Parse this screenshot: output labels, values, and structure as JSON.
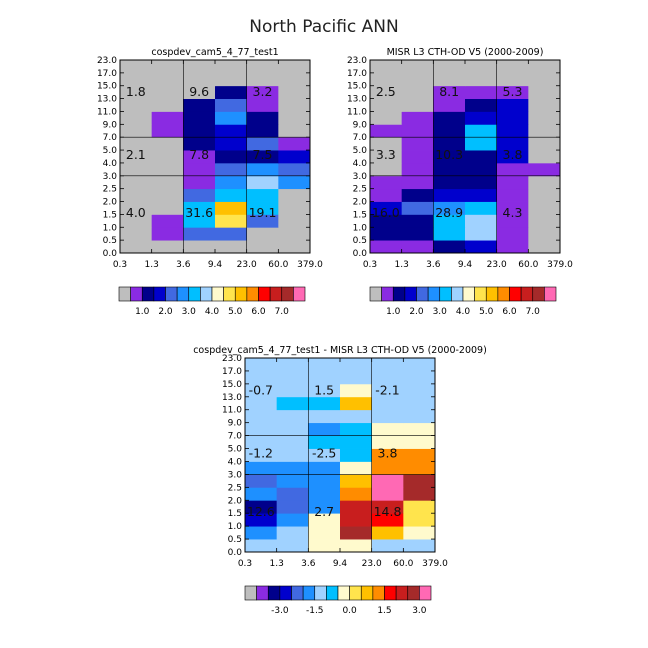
{
  "title": "North Pacific ANN",
  "chart_data": [
    {
      "type": "heatmap",
      "title": "cospdev_cam5_4_77_test1",
      "xticks": [
        "0.3",
        "1.3",
        "3.6",
        "9.4",
        "23.0",
        "60.0",
        "379.0"
      ],
      "yticks": [
        "0.0",
        "0.5",
        "1.0",
        "1.5",
        "2.0",
        "2.5",
        "3.0",
        "4.0",
        "5.0",
        "7.0",
        "9.0",
        "11.0",
        "13.0",
        "15.0",
        "17.0",
        "23.0"
      ],
      "palette": "abs",
      "cells": [
        [
          0,
          0,
          0,
          0,
          0,
          0
        ],
        [
          0,
          1,
          4,
          4,
          0,
          0
        ],
        [
          0,
          1,
          6,
          9,
          4,
          0
        ],
        [
          0,
          0,
          6,
          10,
          6,
          0
        ],
        [
          0,
          0,
          4,
          6,
          6,
          0
        ],
        [
          0,
          0,
          1,
          5,
          7,
          5
        ],
        [
          0,
          0,
          1,
          4,
          5,
          4
        ],
        [
          0,
          0,
          1,
          2,
          2,
          3
        ],
        [
          0,
          0,
          2,
          3,
          4,
          1
        ],
        [
          0,
          1,
          2,
          3,
          2,
          0
        ],
        [
          0,
          1,
          2,
          5,
          2,
          0
        ],
        [
          0,
          0,
          2,
          4,
          1,
          0
        ],
        [
          0,
          0,
          0,
          2,
          1,
          0
        ],
        [
          0,
          0,
          0,
          0,
          0,
          0
        ],
        [
          0,
          0,
          0,
          0,
          0,
          0
        ]
      ],
      "annotations": [
        {
          "text": "1.8",
          "col": 0.5,
          "row": 12.5
        },
        {
          "text": "9.6",
          "col": 2.5,
          "row": 12.5
        },
        {
          "text": "3.2",
          "col": 4.5,
          "row": 12.5
        },
        {
          "text": "2.1",
          "col": 0.5,
          "row": 7.6
        },
        {
          "text": "7.8",
          "col": 2.5,
          "row": 7.6
        },
        {
          "text": "7.5",
          "col": 4.5,
          "row": 7.6
        },
        {
          "text": "4.0",
          "col": 0.5,
          "row": 3.1
        },
        {
          "text": "31.6",
          "col": 2.5,
          "row": 3.1
        },
        {
          "text": "19.1",
          "col": 4.5,
          "row": 3.1
        }
      ]
    },
    {
      "type": "heatmap",
      "title": "MISR L3 CTH-OD V5 (2000-2009)",
      "xticks": [
        "0.3",
        "1.3",
        "3.6",
        "9.4",
        "23.0",
        "60.0",
        "379.0"
      ],
      "yticks": [
        "0.0",
        "0.5",
        "1.0",
        "1.5",
        "2.0",
        "2.5",
        "3.0",
        "4.0",
        "5.0",
        "7.0",
        "9.0",
        "11.0",
        "13.0",
        "15.0",
        "17.0",
        "23.0"
      ],
      "palette": "abs",
      "cells": [
        [
          1,
          1,
          2,
          3,
          1,
          0
        ],
        [
          2,
          2,
          6,
          7,
          1,
          0
        ],
        [
          2,
          2,
          6,
          7,
          1,
          0
        ],
        [
          3,
          4,
          5,
          6,
          1,
          0
        ],
        [
          1,
          2,
          3,
          3,
          1,
          0
        ],
        [
          1,
          1,
          2,
          2,
          1,
          0
        ],
        [
          0,
          1,
          2,
          2,
          1,
          1
        ],
        [
          0,
          1,
          2,
          2,
          3,
          0
        ],
        [
          0,
          1,
          2,
          6,
          3,
          0
        ],
        [
          1,
          1,
          2,
          6,
          3,
          0
        ],
        [
          0,
          1,
          2,
          3,
          3,
          0
        ],
        [
          0,
          0,
          1,
          2,
          3,
          0
        ],
        [
          0,
          0,
          1,
          1,
          1,
          0
        ],
        [
          0,
          0,
          0,
          0,
          0,
          0
        ],
        [
          0,
          0,
          0,
          0,
          0,
          0
        ]
      ],
      "annotations": [
        {
          "text": "2.5",
          "col": 0.5,
          "row": 12.5
        },
        {
          "text": "8.1",
          "col": 2.5,
          "row": 12.5
        },
        {
          "text": "5.3",
          "col": 4.5,
          "row": 12.5
        },
        {
          "text": "3.3",
          "col": 0.5,
          "row": 7.6
        },
        {
          "text": "10.3",
          "col": 2.5,
          "row": 7.6
        },
        {
          "text": "3.8",
          "col": 4.5,
          "row": 7.6
        },
        {
          "text": "16.0",
          "col": 0.5,
          "row": 3.1
        },
        {
          "text": "28.9",
          "col": 2.5,
          "row": 3.1
        },
        {
          "text": "4.3",
          "col": 4.5,
          "row": 3.1
        }
      ]
    },
    {
      "type": "heatmap",
      "title": "cospdev_cam5_4_77_test1 - MISR L3 CTH-OD V5 (2000-2009)",
      "xticks": [
        "0.3",
        "1.3",
        "3.6",
        "9.4",
        "23.0",
        "60.0",
        "379.0"
      ],
      "yticks": [
        "0.0",
        "0.5",
        "1.0",
        "1.5",
        "2.0",
        "2.5",
        "3.0",
        "4.0",
        "5.0",
        "7.0",
        "9.0",
        "11.0",
        "13.0",
        "15.0",
        "17.0",
        "23.0"
      ],
      "palette": "diff",
      "cells": [
        [
          6,
          6,
          8,
          8,
          6,
          6
        ],
        [
          5,
          6,
          8,
          14,
          10,
          8
        ],
        [
          3,
          5,
          8,
          13,
          12,
          9
        ],
        [
          2,
          4,
          5,
          13,
          13,
          9
        ],
        [
          5,
          4,
          5,
          11,
          15,
          14
        ],
        [
          4,
          5,
          5,
          10,
          15,
          14
        ],
        [
          5,
          5,
          5,
          8,
          11,
          11
        ],
        [
          6,
          6,
          6,
          7,
          11,
          11
        ],
        [
          6,
          6,
          7,
          7,
          8,
          8
        ],
        [
          6,
          6,
          5,
          7,
          8,
          8
        ],
        [
          6,
          6,
          6,
          6,
          6,
          6
        ],
        [
          6,
          7,
          7,
          10,
          6,
          6
        ],
        [
          6,
          6,
          6,
          8,
          6,
          6
        ],
        [
          6,
          6,
          6,
          6,
          6,
          6
        ],
        [
          6,
          6,
          6,
          6,
          6,
          6
        ]
      ],
      "annotations": [
        {
          "text": "-0.7",
          "col": 0.5,
          "row": 12.5
        },
        {
          "text": "1.5",
          "col": 2.5,
          "row": 12.5
        },
        {
          "text": "-2.1",
          "col": 4.5,
          "row": 12.5
        },
        {
          "text": "-1.2",
          "col": 0.5,
          "row": 7.6
        },
        {
          "text": "-2.5",
          "col": 2.5,
          "row": 7.6
        },
        {
          "text": "3.8",
          "col": 4.5,
          "row": 7.6
        },
        {
          "text": "12.6",
          "col": 0.5,
          "row": 3.1
        },
        {
          "text": "2.7",
          "col": 2.5,
          "row": 3.1
        },
        {
          "text": "14.8",
          "col": 4.5,
          "row": 3.1
        }
      ]
    }
  ],
  "colorbars": {
    "abs": {
      "colors": [
        "#bebebe",
        "#8a2be2",
        "#00008b",
        "#0000cd",
        "#4169e1",
        "#1e90ff",
        "#00bfff",
        "#a0d2ff",
        "#fffacd",
        "#ffe44d",
        "#ffc000",
        "#ff8c00",
        "#ff0000",
        "#c81e1e",
        "#a52a2a",
        "#ff69b4"
      ],
      "labels": [
        "1.0",
        "2.0",
        "3.0",
        "4.0",
        "5.0",
        "6.0",
        "7.0"
      ]
    },
    "diff": {
      "colors": [
        "#bebebe",
        "#8a2be2",
        "#00008b",
        "#0000cd",
        "#4169e1",
        "#1e90ff",
        "#a0d2ff",
        "#00bfff",
        "#fffacd",
        "#ffe44d",
        "#ffc000",
        "#ff8c00",
        "#ff0000",
        "#c81e1e",
        "#a52a2a",
        "#ff69b4"
      ],
      "labels": [
        "-3.0",
        "-1.5",
        "0.0",
        "1.5",
        "3.0"
      ]
    }
  }
}
